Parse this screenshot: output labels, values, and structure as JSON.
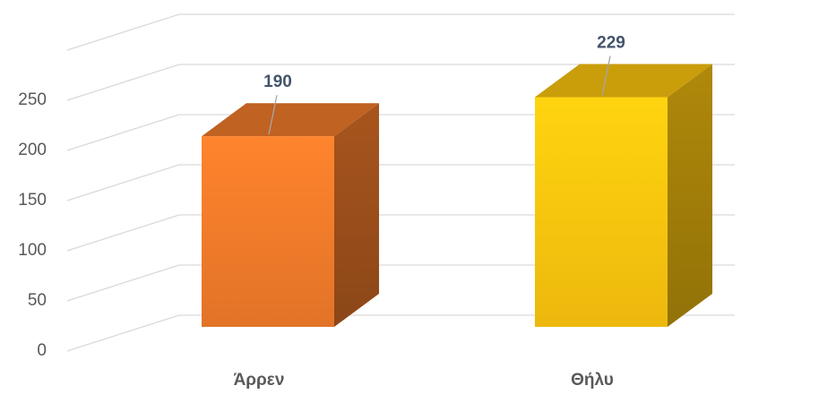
{
  "chart_data": {
    "type": "bar3d",
    "categories": [
      "Άρρεν",
      "Θήλυ"
    ],
    "values": [
      190,
      229
    ],
    "colors": [
      "#f07a2a",
      "#fcc40e"
    ],
    "ylim": [
      0,
      300
    ],
    "yticks": [
      0,
      50,
      100,
      150,
      200,
      250
    ],
    "grid": true
  }
}
